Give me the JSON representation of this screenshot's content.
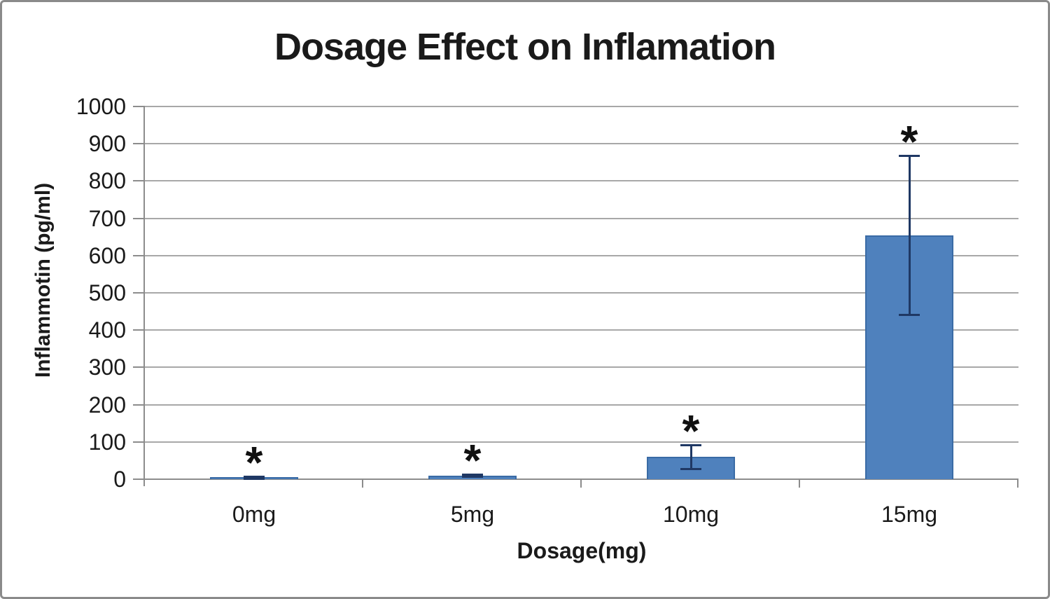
{
  "chart_data": {
    "type": "bar",
    "title": "Dosage Effect on Inflamation",
    "xlabel": "Dosage(mg)",
    "ylabel": "Inflammotin (pg/ml)",
    "categories": [
      "0mg",
      "5mg",
      "10mg",
      "15mg"
    ],
    "values": [
      5,
      10,
      60,
      655
    ],
    "error_bars": [
      3,
      3,
      32,
      213
    ],
    "point_annotations": [
      "*",
      "*",
      "*",
      "*"
    ],
    "ylim": [
      0,
      1000
    ],
    "yticks": [
      0,
      100,
      200,
      300,
      400,
      500,
      600,
      700,
      800,
      900,
      1000
    ],
    "grid": "horizontal",
    "legend": "none",
    "colors": {
      "bar_fill": "#4F81BD",
      "bar_border": "#3A6BA5",
      "error_bar": "#1F3864",
      "gridline": "#A8A8A8",
      "axis": "#8C8C8C",
      "text": "#1A1A1A",
      "frame_border": "#8A8A8A",
      "background": "#FFFFFF"
    }
  }
}
